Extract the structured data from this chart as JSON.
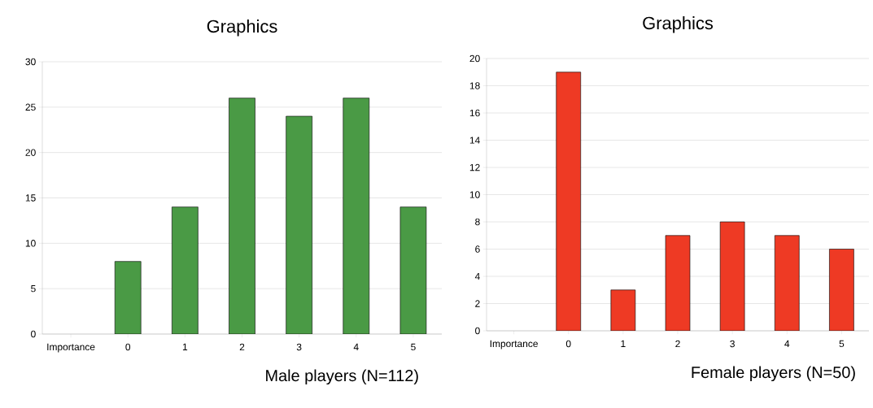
{
  "chart_data": [
    {
      "type": "bar",
      "title": "Graphics",
      "xlabel": "Male players (N=112)",
      "categories": [
        "Importance",
        "0",
        "1",
        "2",
        "3",
        "4",
        "5"
      ],
      "values": [
        null,
        8,
        14,
        26,
        24,
        26,
        14
      ],
      "color": "#4a9a45",
      "ylim": [
        0,
        30
      ],
      "yticks": [
        0,
        5,
        10,
        15,
        20,
        25,
        30
      ],
      "grid": "y"
    },
    {
      "type": "bar",
      "title": "Graphics",
      "xlabel": "Female players (N=50)",
      "categories": [
        "Importance",
        "0",
        "1",
        "2",
        "3",
        "4",
        "5"
      ],
      "values": [
        null,
        19,
        3,
        7,
        8,
        7,
        6
      ],
      "color": "#ee3a24",
      "ylim": [
        0,
        20
      ],
      "yticks": [
        0,
        2,
        4,
        6,
        8,
        10,
        12,
        14,
        16,
        18,
        20
      ],
      "grid": "y"
    }
  ]
}
